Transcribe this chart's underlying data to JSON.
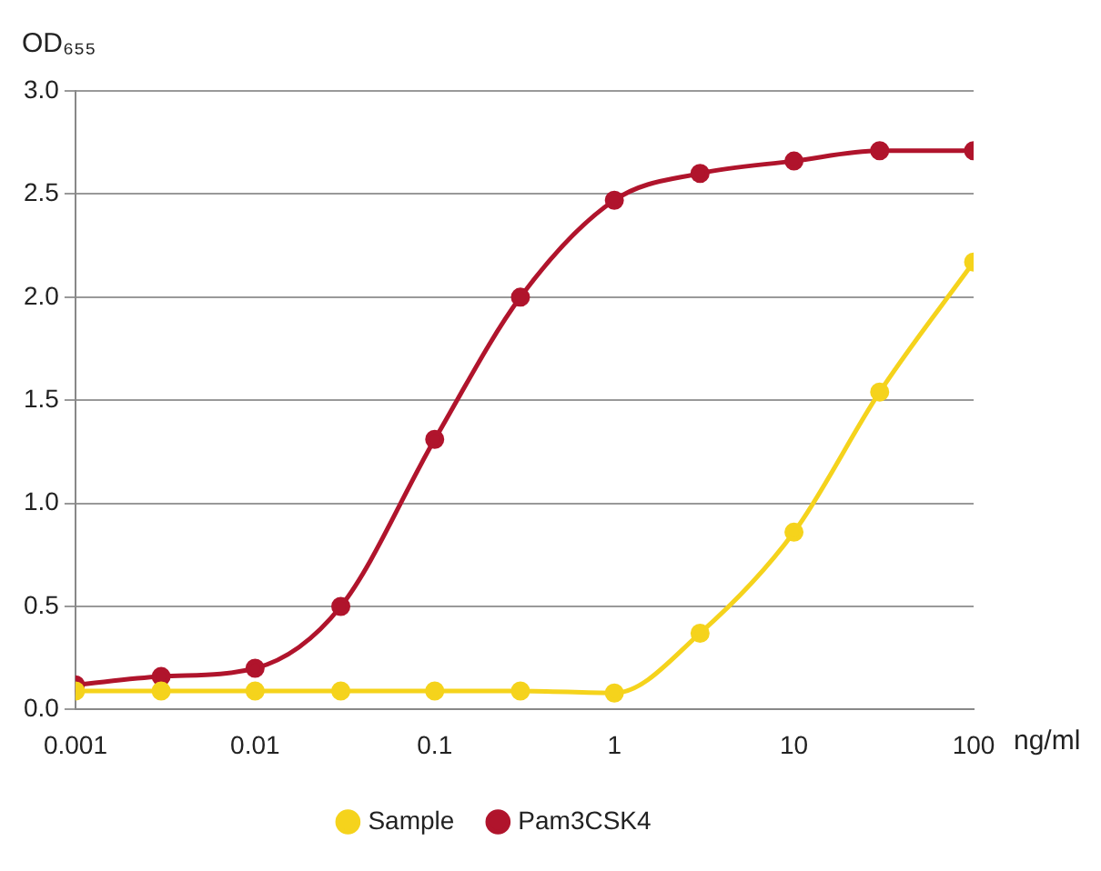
{
  "chart_data": {
    "type": "line",
    "ylabel": "OD₆₅₅",
    "xlabel": "ng/ml",
    "x": [
      0.001,
      0.003,
      0.01,
      0.03,
      0.1,
      0.3,
      1,
      3,
      10,
      30,
      100
    ],
    "series": [
      {
        "name": "Sample",
        "color": "#f5d31c",
        "values": [
          0.09,
          0.09,
          0.09,
          0.09,
          0.09,
          0.09,
          0.08,
          0.37,
          0.86,
          1.54,
          2.17
        ]
      },
      {
        "name": "Pam3CSK4",
        "color": "#b0142c",
        "values": [
          0.12,
          0.16,
          0.2,
          0.5,
          1.31,
          2.0,
          2.47,
          2.6,
          2.66,
          2.71,
          2.71
        ]
      }
    ],
    "log": "x",
    "xlim": [
      0.001,
      100
    ],
    "xticks": [
      0.001,
      0.01,
      0.1,
      1,
      10,
      100
    ],
    "ylim": [
      0,
      3
    ],
    "yticks": [
      {
        "value": 0,
        "label": "0.0"
      },
      {
        "value": 0.5,
        "label": "0.5"
      },
      {
        "value": 1,
        "label": "1.0"
      },
      {
        "value": 1.5,
        "label": "1.5"
      },
      {
        "value": 2,
        "label": "2.0"
      },
      {
        "value": 2.5,
        "label": "2.5"
      },
      {
        "value": 3,
        "label": "3.0"
      }
    ],
    "grid": "y",
    "legend": "bottom",
    "marker": "circle",
    "line_style": "solid"
  }
}
